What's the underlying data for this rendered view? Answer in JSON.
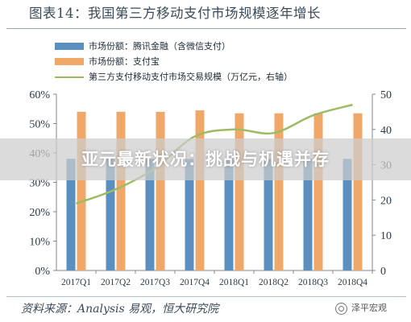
{
  "chart_data": {
    "type": "bar",
    "title": "图表14：我国第三方移动支付市场规模逐年增长",
    "categories": [
      "2017Q1",
      "2017Q2",
      "2017Q3",
      "2017Q4",
      "2018Q1",
      "2018Q2",
      "2018Q3",
      "2018Q4"
    ],
    "series": [
      {
        "name": "市场份额：腾讯金融（含微信支付）",
        "type": "bar",
        "axis": "left",
        "color": "#5b8fbf",
        "values": [
          0.38,
          0.38,
          0.38,
          0.38,
          0.38,
          0.38,
          0.38,
          0.38
        ]
      },
      {
        "name": "市场份额：支付宝",
        "type": "bar",
        "axis": "left",
        "color": "#f0a868",
        "values": [
          0.54,
          0.54,
          0.54,
          0.545,
          0.535,
          0.535,
          0.535,
          0.535
        ]
      },
      {
        "name": "第三方支付移动支付市场交易规模（万亿元，右轴）",
        "type": "line",
        "axis": "right",
        "color": "#9cbc63",
        "values": [
          19,
          23,
          29,
          38,
          40,
          39,
          44,
          47
        ]
      }
    ],
    "left_axis": {
      "min": 0,
      "max": 0.6,
      "ticks": [
        "0%",
        "10%",
        "20%",
        "30%",
        "40%",
        "50%",
        "60%"
      ]
    },
    "right_axis": {
      "min": 0,
      "max": 50,
      "ticks": [
        "0",
        "10",
        "20",
        "30",
        "40",
        "50"
      ]
    },
    "grid": false,
    "legend": "top-left"
  },
  "banner": {
    "text": "亚元最新状况：挑战与机遇并存"
  },
  "source": {
    "text": "资料来源：Analysis 易观，恒大研究院"
  },
  "watermark": {
    "text": "泽平宏观"
  }
}
